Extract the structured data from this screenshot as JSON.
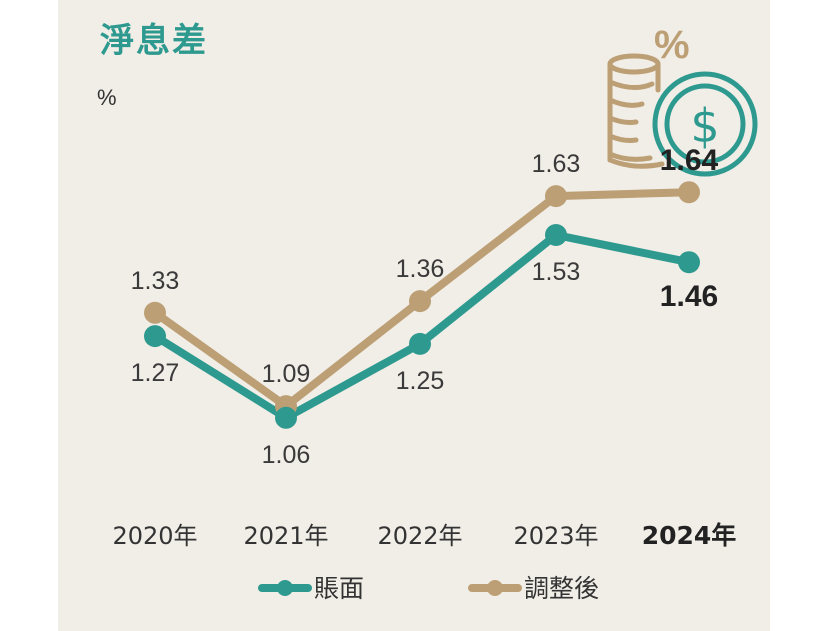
{
  "chart_data": {
    "type": "line",
    "title": "淨息差",
    "ylabel": "%",
    "categories": [
      "2020年",
      "2021年",
      "2022年",
      "2023年",
      "2024年"
    ],
    "highlight_category": "2024年",
    "series": [
      {
        "name": "賬面",
        "values": [
          1.27,
          1.06,
          1.25,
          1.53,
          1.46
        ],
        "labels": [
          "1.27",
          "1.06",
          "1.25",
          "1.53",
          "1.46"
        ],
        "color": "#2e9a8f"
      },
      {
        "name": "調整後",
        "values": [
          1.33,
          1.09,
          1.36,
          1.63,
          1.64
        ],
        "labels": [
          "1.33",
          "1.09",
          "1.36",
          "1.63",
          "1.64"
        ],
        "color": "#bc9f74"
      }
    ],
    "ylim": [
      0.9,
      1.8
    ],
    "grid": false,
    "legend": "bottom"
  },
  "icons": {
    "illustration": "coins-percent-dollar-icon"
  },
  "colors": {
    "background": "#f1ede7",
    "accent": "#2e9a8f",
    "secondary": "#bc9f74"
  }
}
